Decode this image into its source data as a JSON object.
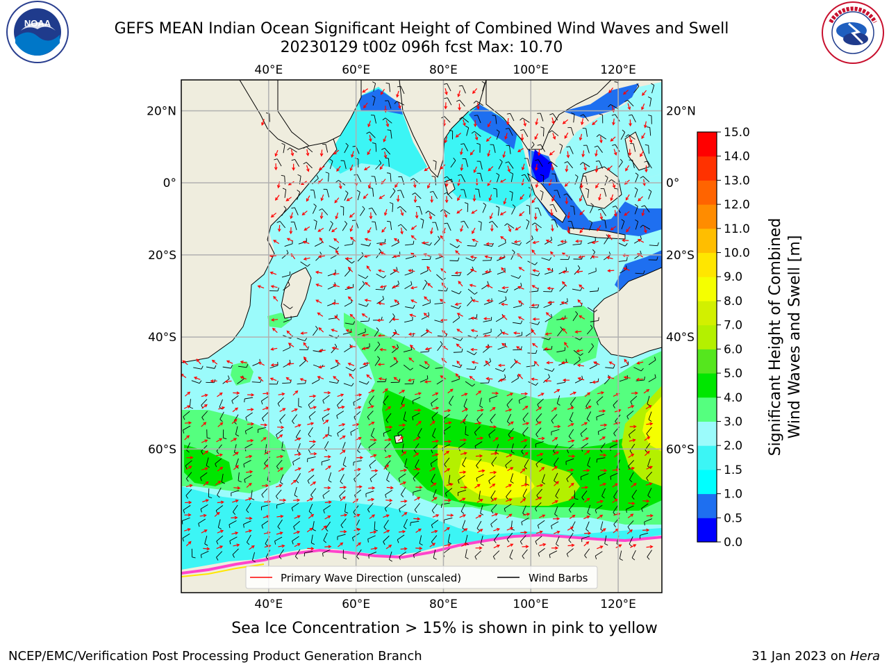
{
  "header": {
    "title_line1": "GEFS MEAN Indian Ocean Significant Height of Combined Wind Waves and Swell",
    "title_line2": "20230129 t00z 096h fcst   Max: 10.70",
    "left_logo_text": "NOAA",
    "left_logo_ring": "NATIONAL OCEANIC AND ATMOSPHERIC ADMINISTRATION · U.S. DEPARTMENT OF COMMERCE",
    "right_logo_ring": "NATIONAL WEATHER SERVICE"
  },
  "map": {
    "region": "Indian Ocean",
    "lon_range": [
      20,
      130
    ],
    "lat_range": [
      -75,
      28
    ],
    "projection": "mercator",
    "grid": true,
    "top_lon_labels": [
      "40°E",
      "60°E",
      "80°E",
      "100°E",
      "120°E"
    ],
    "bottom_lon_labels": [
      "40°E",
      "60°E",
      "80°E",
      "100°E",
      "120°E"
    ],
    "left_lat_labels": [
      "20°N",
      "0°",
      "20°S",
      "40°S",
      "60°S"
    ],
    "right_lat_labels": [
      "20°N",
      "0°",
      "20°S",
      "40°S",
      "60°S"
    ],
    "lon_values": [
      40,
      60,
      80,
      100,
      120
    ],
    "lat_values": [
      20,
      0,
      -20,
      -40,
      -60
    ],
    "land_color": "#efedde",
    "legend": {
      "placement": "lower-center",
      "items": [
        {
          "label": "Primary Wave Direction (unscaled)",
          "color": "#ff0000"
        },
        {
          "label": "Wind Barbs",
          "color": "#000000"
        }
      ]
    },
    "max_value": 10.7
  },
  "colorbar": {
    "label_line1": "Significant Height of Combined",
    "label_line2": "Wind Waves and Swell [m]",
    "ticks": [
      "0.0",
      "0.5",
      "1.0",
      "1.5",
      "2.0",
      "3.0",
      "4.0",
      "5.0",
      "6.0",
      "7.0",
      "8.0",
      "9.0",
      "10.0",
      "11.0",
      "12.0",
      "13.0",
      "14.0",
      "15.0"
    ],
    "colors": [
      "#0000ff",
      "#1e6ff0",
      "#00ffff",
      "#3cf5f5",
      "#9bfbfb",
      "#55ff7f",
      "#00e600",
      "#55e61e",
      "#b4f000",
      "#d2f000",
      "#f5ff00",
      "#ffe600",
      "#ffbe00",
      "#ff8c00",
      "#ff6400",
      "#ff3200",
      "#ff0000"
    ]
  },
  "caption": "Sea Ice Concentration > 15% is shown in pink to yellow",
  "footer": {
    "left": "NCEP/EMC/Verification Post Processing Product Generation Branch",
    "right_date": "31 Jan 2023 on ",
    "right_host": "Hera"
  }
}
